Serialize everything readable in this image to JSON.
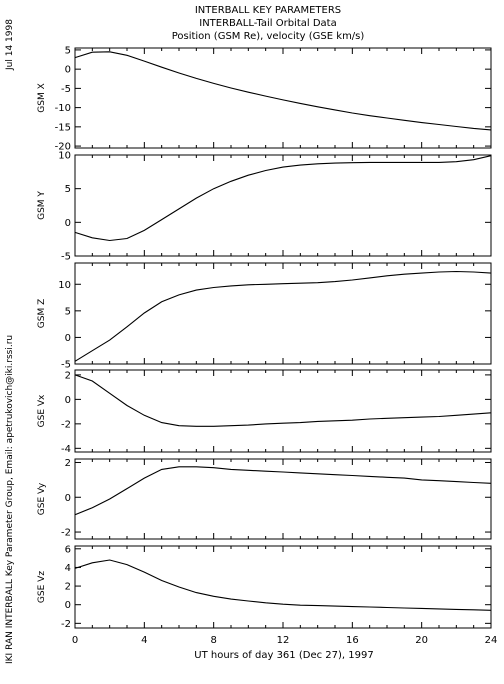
{
  "page": {
    "date_stamp": "Jul 14 1998",
    "credit": "IKI RAN INTERBALL Key Parameter Group, Email: apetrukovich@iki.rssi.ru"
  },
  "chart_data": {
    "type": "line",
    "title_lines": [
      "INTERBALL KEY PARAMETERS",
      "INTERBALL-Tail Orbital Data",
      "Position (GSM Re), velocity (GSE km/s)"
    ],
    "xlabel": "UT hours of day 361 (Dec 27), 1997",
    "xlim": [
      0,
      24
    ],
    "xticks": [
      0,
      4,
      8,
      12,
      16,
      20,
      24
    ],
    "x": [
      0,
      1,
      2,
      3,
      4,
      5,
      6,
      7,
      8,
      9,
      10,
      11,
      12,
      13,
      14,
      15,
      16,
      17,
      18,
      19,
      20,
      21,
      22,
      23,
      24
    ],
    "panels": [
      {
        "ylabel": "GSM X",
        "ylim": [
          -20.5,
          5.5
        ],
        "yticks": [
          5,
          0,
          -5,
          -10,
          -15,
          -20
        ],
        "values": [
          3.0,
          4.4,
          4.5,
          3.6,
          2.1,
          0.5,
          -1.0,
          -2.4,
          -3.7,
          -4.9,
          -6.0,
          -7.0,
          -8.0,
          -8.9,
          -9.8,
          -10.6,
          -11.4,
          -12.1,
          -12.7,
          -13.3,
          -13.9,
          -14.4,
          -14.9,
          -15.4,
          -15.8
        ]
      },
      {
        "ylabel": "GSM Y",
        "ylim": [
          -5,
          10
        ],
        "yticks": [
          10,
          5,
          0,
          -5
        ],
        "values": [
          -1.5,
          -2.3,
          -2.7,
          -2.4,
          -1.2,
          0.4,
          2.0,
          3.6,
          5.0,
          6.1,
          7.0,
          7.7,
          8.2,
          8.5,
          8.7,
          8.8,
          8.85,
          8.9,
          8.9,
          8.9,
          8.9,
          8.9,
          9.0,
          9.3,
          9.9
        ]
      },
      {
        "ylabel": "GSM Z",
        "ylim": [
          -5,
          14
        ],
        "yticks": [
          10,
          5,
          0,
          -5
        ],
        "values": [
          -4.5,
          -2.5,
          -0.5,
          2.0,
          4.6,
          6.7,
          8.0,
          8.9,
          9.4,
          9.7,
          9.9,
          10.0,
          10.1,
          10.2,
          10.3,
          10.5,
          10.8,
          11.2,
          11.6,
          11.9,
          12.1,
          12.3,
          12.4,
          12.3,
          12.1
        ]
      },
      {
        "ylabel": "GSE Vx",
        "ylim": [
          -4.3,
          2.4
        ],
        "yticks": [
          2,
          0,
          -2,
          -4
        ],
        "values": [
          2.0,
          1.5,
          0.5,
          -0.5,
          -1.3,
          -1.9,
          -2.15,
          -2.2,
          -2.2,
          -2.15,
          -2.1,
          -2.0,
          -1.95,
          -1.9,
          -1.8,
          -1.75,
          -1.7,
          -1.6,
          -1.55,
          -1.5,
          -1.45,
          -1.4,
          -1.3,
          -1.2,
          -1.1
        ]
      },
      {
        "ylabel": "GSE Vy",
        "ylim": [
          -2.4,
          2.2
        ],
        "yticks": [
          2,
          0,
          -2
        ],
        "values": [
          -1.0,
          -0.6,
          -0.1,
          0.5,
          1.1,
          1.6,
          1.75,
          1.75,
          1.7,
          1.6,
          1.55,
          1.5,
          1.45,
          1.4,
          1.35,
          1.3,
          1.25,
          1.2,
          1.15,
          1.1,
          1.0,
          0.95,
          0.9,
          0.85,
          0.8
        ]
      },
      {
        "ylabel": "GSE Vz",
        "ylim": [
          -2.5,
          6.3
        ],
        "yticks": [
          6,
          4,
          2,
          0,
          -2
        ],
        "values": [
          3.9,
          4.5,
          4.8,
          4.3,
          3.5,
          2.6,
          1.9,
          1.3,
          0.9,
          0.6,
          0.4,
          0.2,
          0.05,
          -0.05,
          -0.1,
          -0.15,
          -0.2,
          -0.25,
          -0.3,
          -0.35,
          -0.4,
          -0.45,
          -0.5,
          -0.55,
          -0.6
        ]
      }
    ]
  }
}
